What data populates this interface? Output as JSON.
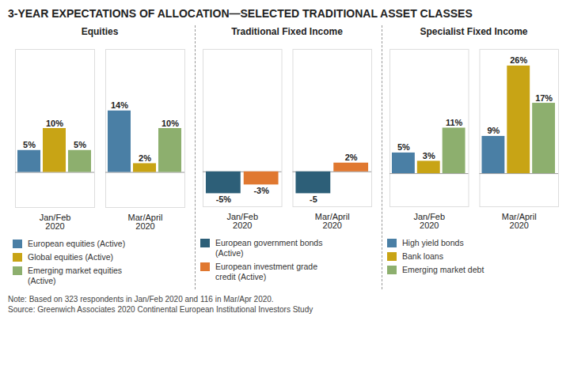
{
  "title": "3-YEAR EXPECTATIONS OF ALLOCATION—SELECTED TRADITIONAL ASSET CLASSES",
  "note": "Note: Based on 323 respondents in Jan/Feb 2020 and 116 in Mar/Apr 2020.\nSource: Greenwich Associates 2020 Continental European Institutional Investors Study",
  "chart_data": [
    {
      "type": "bar",
      "title": "Equities",
      "categories": [
        "Jan/Feb\n2020",
        "Mar/April\n2020"
      ],
      "series": [
        {
          "name": "European equities (Active)",
          "color": "#4A7FA5",
          "values": [
            5,
            14
          ],
          "value_labels": [
            "5%",
            "14%"
          ]
        },
        {
          "name": "Global equities (Active)",
          "color": "#C8A415",
          "values": [
            10,
            2
          ],
          "value_labels": [
            "10%",
            "2%"
          ]
        },
        {
          "name": "Emerging market equities\n(Active)",
          "color": "#8DAF6E",
          "values": [
            5,
            10
          ],
          "value_labels": [
            "5%",
            "10%"
          ]
        }
      ],
      "ylim": [
        -8,
        28
      ],
      "data_labels": true,
      "tick_labels": "x",
      "legend": "bottom",
      "grid": false
    },
    {
      "type": "bar",
      "title": "Traditional Fixed Income",
      "categories": [
        "Jan/Feb\n2020",
        "Mar/April\n2020"
      ],
      "series": [
        {
          "name": "European government bonds\n(Active)",
          "color": "#2D5F78",
          "values": [
            -5,
            -5
          ],
          "value_labels": [
            "-5%",
            "-5"
          ]
        },
        {
          "name": "European investment grade\ncredit (Active)",
          "color": "#E07830",
          "values": [
            -3,
            2
          ],
          "value_labels": [
            "-3%",
            "2%"
          ]
        }
      ],
      "ylim": [
        -8,
        28
      ],
      "data_labels": true,
      "tick_labels": "x",
      "legend": "bottom",
      "grid": false
    },
    {
      "type": "bar",
      "title": "Specialist Fixed Income",
      "categories": [
        "Jan/Feb\n2020",
        "Mar/April\n2020"
      ],
      "series": [
        {
          "name": "High yield bonds",
          "color": "#4A7FA5",
          "values": [
            5,
            9
          ],
          "value_labels": [
            "5%",
            "9%"
          ]
        },
        {
          "name": "Bank loans",
          "color": "#C8A415",
          "values": [
            3,
            26
          ],
          "value_labels": [
            "3%",
            "26%"
          ]
        },
        {
          "name": "Emerging market debt",
          "color": "#8DAF6E",
          "values": [
            11,
            17
          ],
          "value_labels": [
            "11%",
            "17%"
          ]
        }
      ],
      "ylim": [
        -8,
        30
      ],
      "data_labels": true,
      "tick_labels": "x",
      "legend": "bottom",
      "grid": false
    }
  ]
}
